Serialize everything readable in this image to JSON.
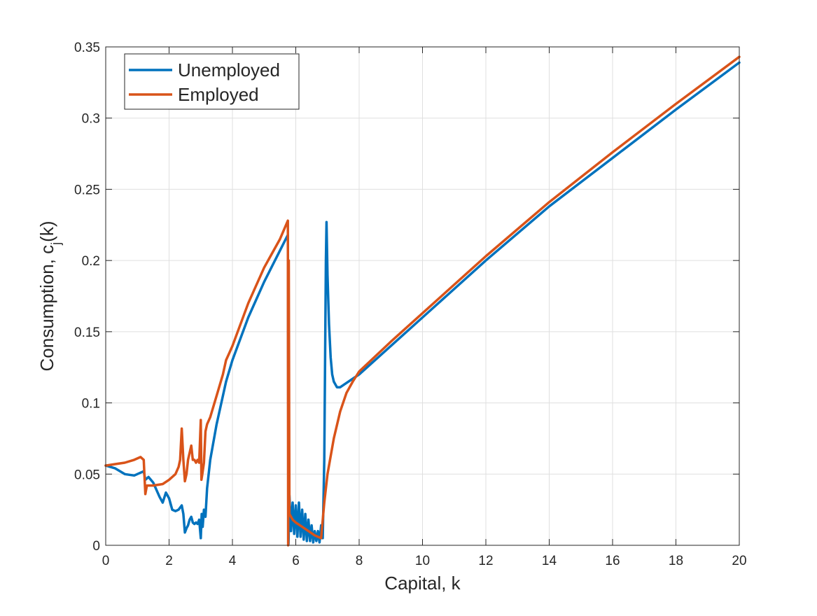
{
  "chart_data": {
    "type": "line",
    "xlabel": "Capital, k",
    "ylabel": "Consumption, c",
    "ylabel_subscript": "j",
    "ylabel_suffix": "(k)",
    "xlim": [
      0,
      20
    ],
    "ylim": [
      0,
      0.35
    ],
    "xticks": [
      0,
      2,
      4,
      6,
      8,
      10,
      12,
      14,
      16,
      18,
      20
    ],
    "yticks": [
      0,
      0.05,
      0.1,
      0.15,
      0.2,
      0.25,
      0.3,
      0.35
    ],
    "xtick_labels": [
      "0",
      "2",
      "4",
      "6",
      "8",
      "10",
      "12",
      "14",
      "16",
      "18",
      "20"
    ],
    "ytick_labels": [
      "0",
      "0.05",
      "0.1",
      "0.15",
      "0.2",
      "0.25",
      "0.3",
      "0.35"
    ],
    "grid": true,
    "legend_position": "top-left",
    "series": [
      {
        "name": "Unemployed",
        "color": "#0072BD",
        "x": [
          0,
          0.3,
          0.6,
          0.9,
          1.2,
          1.25,
          1.35,
          1.5,
          1.7,
          1.8,
          1.9,
          2.0,
          2.1,
          2.2,
          2.3,
          2.4,
          2.45,
          2.5,
          2.55,
          2.6,
          2.65,
          2.7,
          2.75,
          2.8,
          2.85,
          2.9,
          2.95,
          3.0,
          3.03,
          3.06,
          3.1,
          3.15,
          3.2,
          3.3,
          3.5,
          3.8,
          4.0,
          4.5,
          5.0,
          5.5,
          5.75,
          5.77,
          5.8,
          5.85,
          5.9,
          5.95,
          6.0,
          6.05,
          6.1,
          6.15,
          6.2,
          6.25,
          6.3,
          6.35,
          6.4,
          6.45,
          6.5,
          6.55,
          6.6,
          6.65,
          6.7,
          6.75,
          6.8,
          6.85,
          6.9,
          6.95,
          6.97,
          7.0,
          7.05,
          7.1,
          7.15,
          7.2,
          7.3,
          7.4,
          7.6,
          7.8,
          8.0,
          9.0,
          10.0,
          12.0,
          14.0,
          16.0,
          18.0,
          20.0
        ],
        "y": [
          0.056,
          0.054,
          0.05,
          0.049,
          0.052,
          0.046,
          0.048,
          0.044,
          0.034,
          0.03,
          0.037,
          0.033,
          0.025,
          0.024,
          0.025,
          0.028,
          0.022,
          0.009,
          0.012,
          0.014,
          0.018,
          0.02,
          0.016,
          0.015,
          0.016,
          0.015,
          0.018,
          0.005,
          0.022,
          0.013,
          0.025,
          0.02,
          0.04,
          0.06,
          0.085,
          0.115,
          0.13,
          0.16,
          0.185,
          0.207,
          0.218,
          0.001,
          0.035,
          0.01,
          0.03,
          0.008,
          0.028,
          0.006,
          0.03,
          0.006,
          0.025,
          0.004,
          0.022,
          0.003,
          0.018,
          0.003,
          0.014,
          0.002,
          0.01,
          0.003,
          0.01,
          0.002,
          0.014,
          0.005,
          0.06,
          0.2,
          0.227,
          0.19,
          0.155,
          0.132,
          0.12,
          0.115,
          0.111,
          0.111,
          0.114,
          0.117,
          0.12,
          0.14,
          0.16,
          0.2,
          0.238,
          0.272,
          0.306,
          0.339
        ]
      },
      {
        "name": "Employed",
        "color": "#D95319",
        "x": [
          0,
          0.3,
          0.6,
          0.9,
          1.1,
          1.2,
          1.25,
          1.3,
          1.35,
          1.5,
          1.8,
          2.0,
          2.2,
          2.3,
          2.35,
          2.4,
          2.45,
          2.5,
          2.55,
          2.6,
          2.65,
          2.7,
          2.75,
          2.8,
          2.85,
          2.9,
          2.95,
          3.0,
          3.02,
          3.05,
          3.1,
          3.15,
          3.2,
          3.3,
          3.5,
          3.7,
          3.8,
          3.9,
          4.0,
          4.5,
          5.0,
          5.5,
          5.75,
          5.76,
          5.78,
          5.8,
          5.9,
          6.0,
          6.2,
          6.4,
          6.6,
          6.8,
          6.9,
          7.0,
          7.2,
          7.4,
          7.6,
          7.8,
          8.0,
          9.0,
          10.0,
          12.0,
          14.0,
          16.0,
          18.0,
          20.0
        ],
        "y": [
          0.056,
          0.057,
          0.058,
          0.06,
          0.062,
          0.06,
          0.036,
          0.042,
          0.042,
          0.042,
          0.043,
          0.046,
          0.05,
          0.055,
          0.06,
          0.082,
          0.06,
          0.045,
          0.05,
          0.06,
          0.065,
          0.07,
          0.06,
          0.06,
          0.058,
          0.06,
          0.058,
          0.088,
          0.046,
          0.05,
          0.058,
          0.08,
          0.085,
          0.09,
          0.105,
          0.12,
          0.13,
          0.135,
          0.14,
          0.17,
          0.195,
          0.215,
          0.228,
          0.0,
          0.2,
          0.022,
          0.018,
          0.016,
          0.013,
          0.01,
          0.007,
          0.005,
          0.03,
          0.05,
          0.075,
          0.094,
          0.107,
          0.115,
          0.122,
          0.143,
          0.163,
          0.203,
          0.241,
          0.276,
          0.31,
          0.343
        ]
      }
    ]
  }
}
